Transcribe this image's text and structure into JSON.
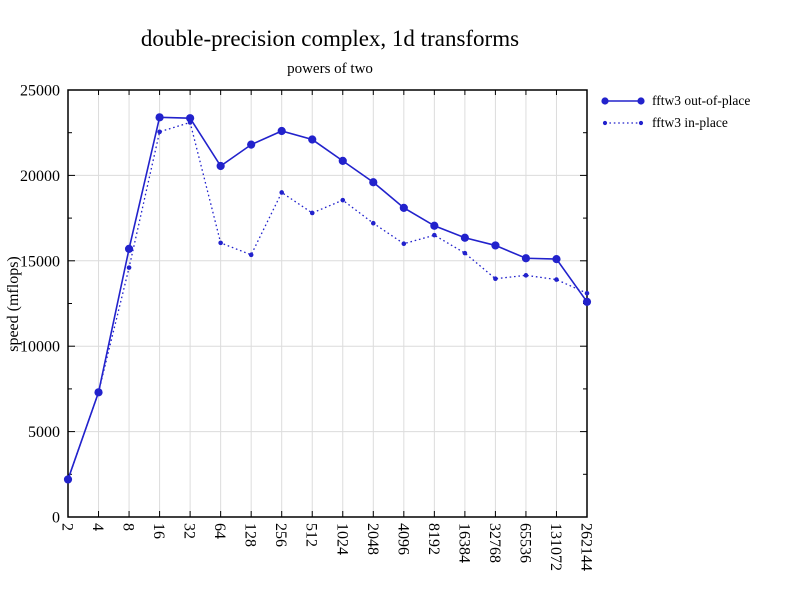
{
  "chart_data": {
    "type": "line",
    "title": "double-precision complex, 1d transforms",
    "subtitle": "powers of two",
    "xlabel": "",
    "ylabel": "speed (mflops)",
    "x_scale": "log2",
    "categories": [
      "2",
      "4",
      "8",
      "16",
      "32",
      "64",
      "128",
      "256",
      "512",
      "1024",
      "2048",
      "4096",
      "8192",
      "16384",
      "32768",
      "65536",
      "131072",
      "262144"
    ],
    "series": [
      {
        "name": "fftw3 out-of-place",
        "line": "solid",
        "marker": "filled-circle",
        "marker_radius": 4.1,
        "values": [
          2200,
          7300,
          15700,
          23400,
          23350,
          20550,
          21800,
          22600,
          22100,
          20850,
          19600,
          18100,
          17050,
          16350,
          15900,
          15150,
          15100,
          12600
        ]
      },
      {
        "name": "fftw3 in-place",
        "line": "dotted",
        "marker": "filled-circle",
        "marker_radius": 2.3,
        "values": [
          2200,
          7300,
          14600,
          22550,
          23100,
          16050,
          15350,
          19000,
          17800,
          18550,
          17200,
          16000,
          16500,
          15450,
          13950,
          14150,
          13900,
          13100
        ]
      }
    ],
    "ylim": [
      0,
      25000
    ],
    "ytick_major": 5000,
    "ytick_minor": 2500,
    "ytick_labels": [
      "0",
      "5000",
      "10000",
      "15000",
      "20000",
      "25000"
    ],
    "grid": true,
    "legend_position": "outside-right-top"
  },
  "colors": {
    "series": "#2222cc",
    "grid": "#dcdcdc",
    "frame": "#000000",
    "text": "#000000",
    "background": "#ffffff"
  }
}
